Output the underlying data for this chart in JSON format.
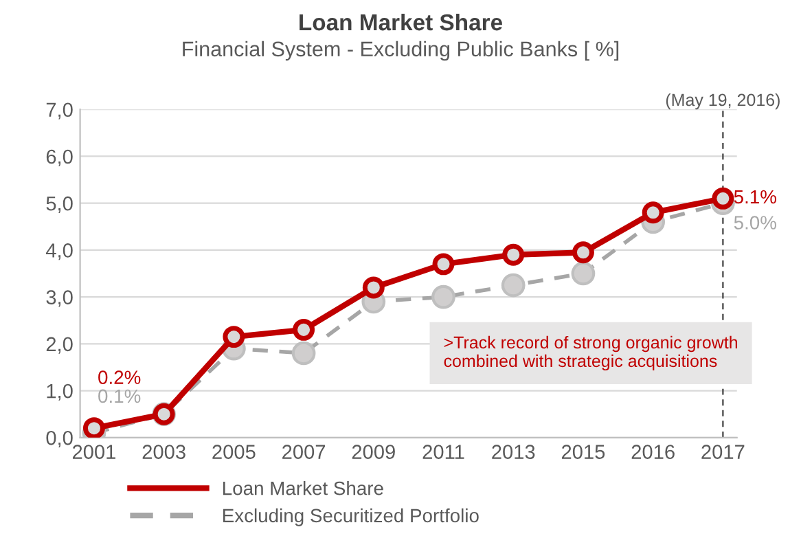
{
  "chart_data": {
    "type": "line",
    "title": "Loan Market Share",
    "subtitle": "Financial System - Excluding Public Banks [ %]",
    "categories": [
      "2001",
      "2003",
      "2005",
      "2007",
      "2009",
      "2011",
      "2013",
      "2015",
      "2016",
      "2017"
    ],
    "series": [
      {
        "name": "Loan Market Share",
        "color": "#c00000",
        "line_style": "solid",
        "values": [
          0.2,
          0.5,
          2.15,
          2.3,
          3.2,
          3.7,
          3.9,
          3.95,
          4.8,
          5.1
        ],
        "value_labels": [
          "0.2%",
          null,
          null,
          null,
          null,
          null,
          null,
          null,
          null,
          "5.1%"
        ]
      },
      {
        "name": "Excluding Securitized Portfolio",
        "color": "#a6a6a6",
        "line_style": "dashed",
        "values": [
          0.1,
          0.5,
          1.9,
          1.8,
          2.9,
          3.0,
          3.25,
          3.5,
          4.6,
          5.0
        ],
        "value_labels": [
          "0.1%",
          null,
          null,
          null,
          null,
          null,
          null,
          null,
          null,
          "5.0%"
        ]
      }
    ],
    "ylim": [
      0,
      7
    ],
    "yticks": [
      {
        "value": 0,
        "label": "0,0"
      },
      {
        "value": 1,
        "label": "1,0"
      },
      {
        "value": 2,
        "label": "2,0"
      },
      {
        "value": 3,
        "label": "3,0"
      },
      {
        "value": 4,
        "label": "4,0"
      },
      {
        "value": 5,
        "label": "5,0"
      },
      {
        "value": 6,
        "label": "6,0"
      },
      {
        "value": 7,
        "label": "7,0"
      }
    ],
    "ref_lines": [
      {
        "axis": "x",
        "value": "2017",
        "label": "(May 19, 2016)",
        "color": "#404040",
        "line_style": "dashed"
      }
    ],
    "annotations": [
      ">Track record of strong organic growth\ncombined with strategic acquisitions"
    ],
    "grid": "y",
    "legend": "bottom",
    "marker": "circle"
  }
}
